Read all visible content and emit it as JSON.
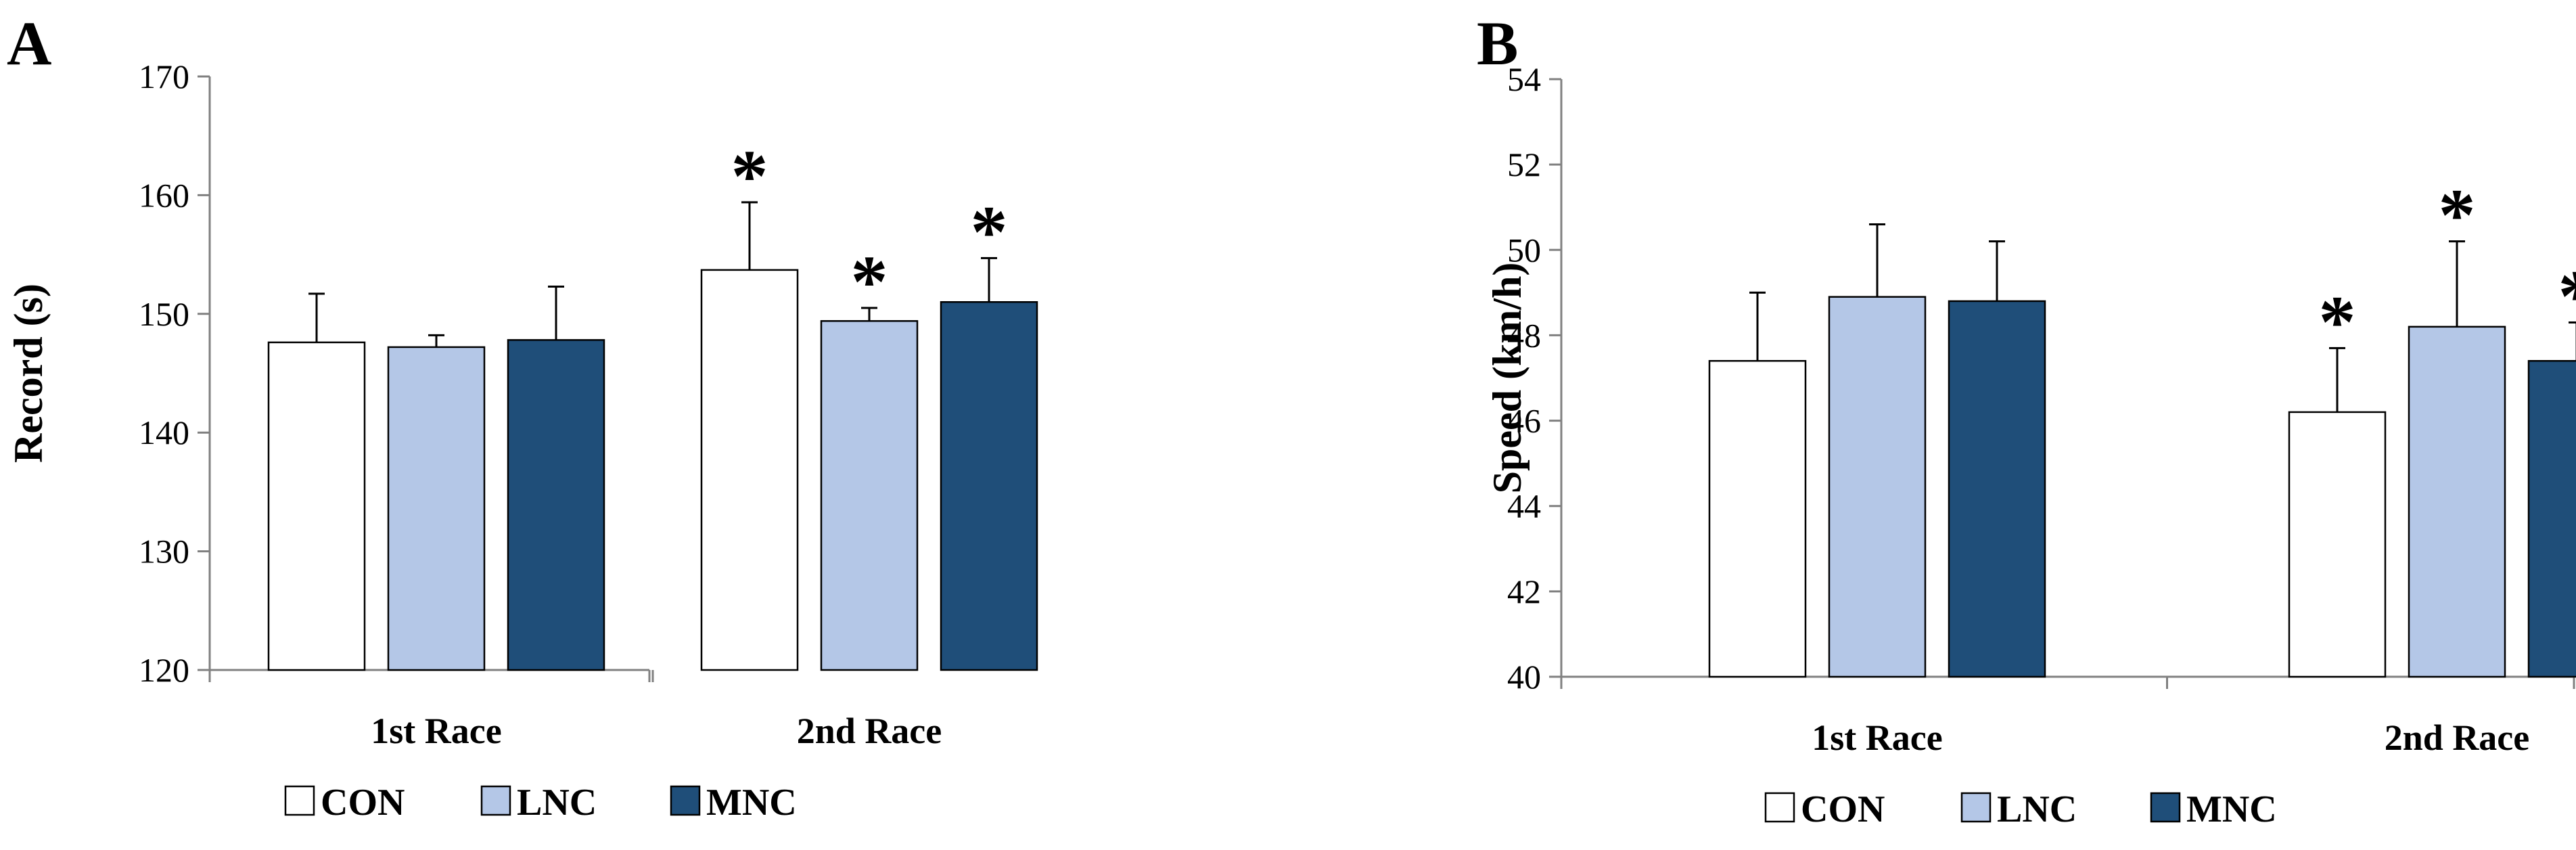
{
  "colors": {
    "CON": "#ffffff",
    "LNC": "#b4c7e7",
    "MNC": "#1f4e79",
    "axis": "#808080",
    "outline": "#000000"
  },
  "chart_data": [
    {
      "type": "bar",
      "panel": "A",
      "ylabel": "Record (s)",
      "xlabel": "",
      "ylim": [
        120,
        170
      ],
      "yticks": [
        "120",
        "130",
        "140",
        "150",
        "160",
        "170"
      ],
      "categories": [
        "1st Race",
        "2nd Race"
      ],
      "series": [
        {
          "name": "CON",
          "values": [
            147.6,
            153.7
          ],
          "errors": [
            4.1,
            5.7
          ],
          "significant": [
            false,
            true
          ]
        },
        {
          "name": "LNC",
          "values": [
            147.2,
            149.4
          ],
          "errors": [
            1.0,
            1.1
          ],
          "significant": [
            false,
            true
          ]
        },
        {
          "name": "MNC",
          "values": [
            147.8,
            151.0
          ],
          "errors": [
            4.5,
            3.7
          ],
          "significant": [
            false,
            true
          ]
        }
      ],
      "significance_marker": "*",
      "legend": [
        "CON",
        "LNC",
        "MNC"
      ],
      "legend_position": "bottom"
    },
    {
      "type": "bar",
      "panel": "B",
      "ylabel": "Speed (km/h)",
      "xlabel": "",
      "ylim": [
        40,
        54
      ],
      "yticks": [
        "40",
        "42",
        "44",
        "46",
        "48",
        "50",
        "52",
        "54"
      ],
      "categories": [
        "1st Race",
        "2nd Race"
      ],
      "series": [
        {
          "name": "CON",
          "values": [
            47.4,
            46.2
          ],
          "errors": [
            1.6,
            1.5
          ],
          "significant": [
            false,
            true
          ]
        },
        {
          "name": "LNC",
          "values": [
            48.9,
            48.2
          ],
          "errors": [
            1.7,
            2.0
          ],
          "significant": [
            false,
            true
          ]
        },
        {
          "name": "MNC",
          "values": [
            48.8,
            47.4
          ],
          "errors": [
            1.4,
            0.9
          ],
          "significant": [
            false,
            true
          ]
        }
      ],
      "significance_marker": "*",
      "legend": [
        "CON",
        "LNC",
        "MNC"
      ],
      "legend_position": "bottom"
    }
  ]
}
